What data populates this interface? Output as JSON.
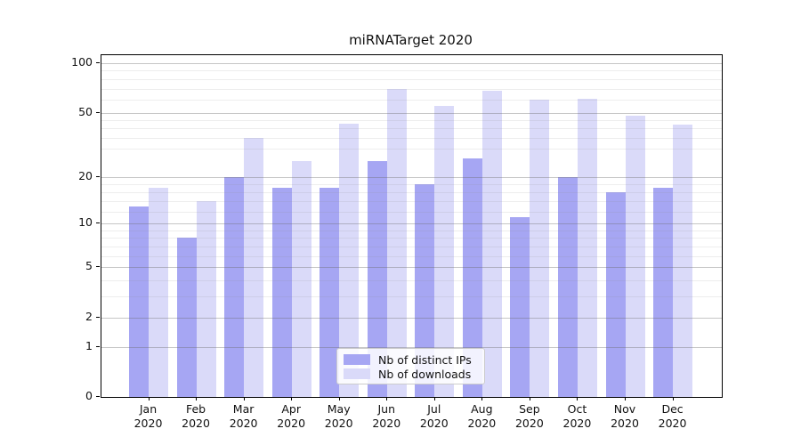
{
  "title": "miRNATarget 2020",
  "legend": {
    "items": [
      {
        "label": "Nb of distinct IPs",
        "color": "#a6a6f3"
      },
      {
        "label": "Nb of downloads",
        "color": "#dadaf9"
      }
    ]
  },
  "chart_data": {
    "type": "bar",
    "title": "miRNATarget 2020",
    "months": [
      "Jan",
      "Feb",
      "Mar",
      "Apr",
      "May",
      "Jun",
      "Jul",
      "Aug",
      "Sep",
      "Oct",
      "Nov",
      "Dec"
    ],
    "year_label": "2020",
    "categories": [
      "Jan 2020",
      "Feb 2020",
      "Mar 2020",
      "Apr 2020",
      "May 2020",
      "Jun 2020",
      "Jul 2020",
      "Aug 2020",
      "Sep 2020",
      "Oct 2020",
      "Nov 2020",
      "Dec 2020"
    ],
    "series": [
      {
        "name": "Nb of distinct IPs",
        "color": "#a6a6f3",
        "values": [
          13,
          8,
          20,
          17,
          17,
          25,
          18,
          26,
          11,
          20,
          16,
          17
        ]
      },
      {
        "name": "Nb of downloads",
        "color": "#dadaf9",
        "values": [
          17,
          14,
          35,
          25,
          43,
          70,
          55,
          68,
          60,
          61,
          48,
          42
        ]
      }
    ],
    "xlabel": "",
    "ylabel": "",
    "yscale": "symlog ln(1+v)",
    "yticks": [
      0,
      1,
      2,
      5,
      10,
      20,
      50,
      100
    ],
    "minor_yticks": [
      3,
      4,
      6,
      7,
      8,
      9,
      12,
      14,
      16,
      18,
      30,
      35,
      40,
      45,
      60,
      70,
      80,
      90
    ],
    "ylim": [
      0,
      112
    ],
    "grid": "on",
    "legend_position": "lower center"
  }
}
